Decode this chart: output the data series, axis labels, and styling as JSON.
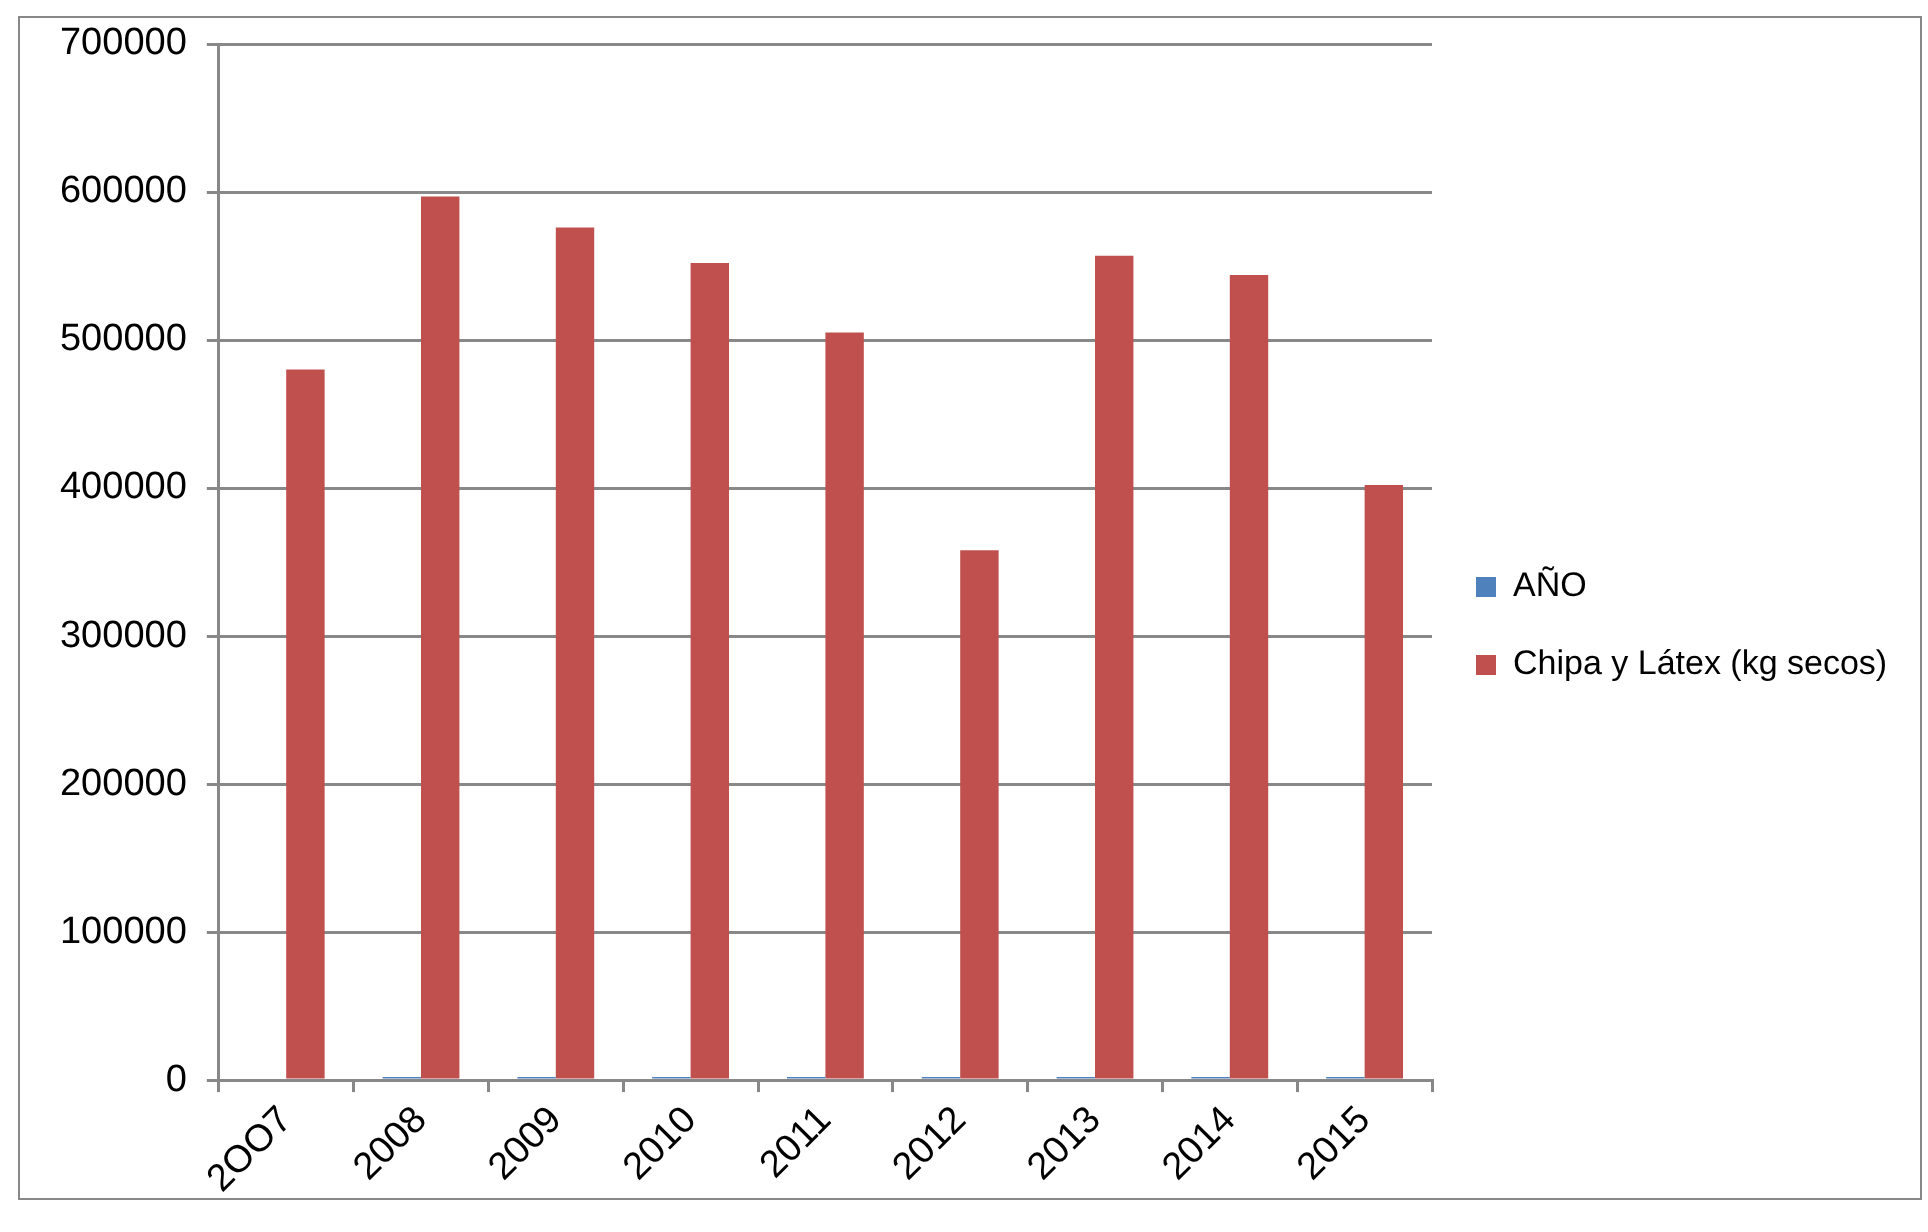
{
  "chart_data": {
    "type": "bar",
    "categories": [
      "2OO7",
      "2008",
      "2009",
      "2010",
      "2011",
      "2012",
      "2013",
      "2014",
      "2015"
    ],
    "series": [
      {
        "name": "AÑO",
        "color": "#4f81bd",
        "values": [
          null,
          2008,
          2009,
          2010,
          2011,
          2012,
          2013,
          2014,
          2015
        ]
      },
      {
        "name": "Chipa y Látex (kg secos)",
        "color": "#c0504d",
        "values": [
          480000,
          597000,
          576000,
          552000,
          505000,
          358000,
          557000,
          544000,
          402000
        ]
      }
    ],
    "ylim": [
      0,
      700000
    ],
    "yticks": [
      0,
      100000,
      200000,
      300000,
      400000,
      500000,
      600000,
      700000
    ],
    "grid": "y",
    "legend": "right"
  }
}
